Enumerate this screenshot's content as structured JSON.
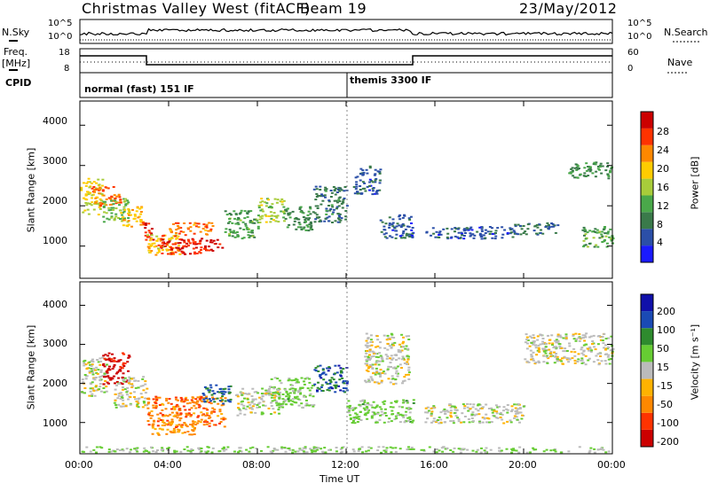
{
  "header": {
    "station": "Christmas Valley West (fitACF)",
    "beam": "Beam 19",
    "date": "23/May/2012"
  },
  "left_labels": {
    "nsky": "N.Sky",
    "freq": "Freq.",
    "freq_unit": "[MHz]",
    "cpid": "CPID"
  },
  "right_labels": {
    "nsearch": "N.Search",
    "nave": "Nave"
  },
  "cpid_labels": {
    "first": "normal (fast) 151 IF",
    "second": "themis 3300 IF"
  },
  "noise_axis": {
    "left_ticks": [
      "10^5",
      "10^0"
    ],
    "right_ticks": [
      "10^5",
      "10^0"
    ]
  },
  "freq_axis": {
    "left_ticks": [
      "18",
      "8"
    ],
    "right_ticks": [
      "60",
      "0"
    ]
  },
  "x_axis": {
    "title": "Time UT",
    "ticks": [
      "00:00",
      "04:00",
      "08:00",
      "12:00",
      "16:00",
      "20:00",
      "00:00"
    ]
  },
  "y_axis": {
    "title": "Slant Range [km]",
    "ticks": [
      "1000",
      "2000",
      "3000",
      "4000"
    ]
  },
  "colors": {
    "power_scale": [
      "#1a1aff",
      "#2b4fa8",
      "#3a7a4a",
      "#4aa84a",
      "#a8cc3a",
      "#ffcc00",
      "#ff8800",
      "#ff3300",
      "#cc0000"
    ],
    "velocity_scale": [
      "#cc0000",
      "#ff3300",
      "#ff8800",
      "#ffb200",
      "#bbbbbb",
      "#66cc33",
      "#2e8b2e",
      "#1a4ab4",
      "#1010aa"
    ],
    "ground_scatter": "#bbbbbb"
  },
  "power_colorbar": {
    "title": "Power [dB]",
    "ticks": [
      "4",
      "8",
      "12",
      "16",
      "20",
      "24",
      "28"
    ]
  },
  "velocity_colorbar": {
    "title": "Velocity [m s⁻¹]",
    "ticks": [
      "200",
      "100",
      "50",
      "15",
      "-15",
      "-50",
      "-100",
      "-200"
    ]
  },
  "chart_data": [
    {
      "type": "heatmap",
      "name": "power",
      "x_unit": "hours UT",
      "xlim": [
        0,
        24
      ],
      "ylim": [
        200,
        4600
      ],
      "zlim": [
        0,
        32
      ],
      "cells": [
        {
          "t": [
            0.0,
            1.0
          ],
          "r": [
            1800,
            2700
          ],
          "v": 18
        },
        {
          "t": [
            0.5,
            1.8
          ],
          "r": [
            2000,
            2500
          ],
          "v": 24
        },
        {
          "t": [
            1.0,
            2.2
          ],
          "r": [
            1600,
            2200
          ],
          "v": 14
        },
        {
          "t": [
            1.8,
            2.8
          ],
          "r": [
            1500,
            2000
          ],
          "v": 20
        },
        {
          "t": [
            2.8,
            3.3
          ],
          "r": [
            1100,
            1600
          ],
          "v": 28
        },
        {
          "t": [
            3.0,
            4.5
          ],
          "r": [
            800,
            1300
          ],
          "v": 20
        },
        {
          "t": [
            3.5,
            5.5
          ],
          "r": [
            800,
            1300
          ],
          "v": 28
        },
        {
          "t": [
            4.0,
            6.0
          ],
          "r": [
            1300,
            1600
          ],
          "v": 24
        },
        {
          "t": [
            5.5,
            6.4
          ],
          "r": [
            900,
            1200
          ],
          "v": 30
        },
        {
          "t": [
            6.5,
            8.0
          ],
          "r": [
            1200,
            1900
          ],
          "v": 12
        },
        {
          "t": [
            8.0,
            9.2
          ],
          "r": [
            1600,
            2200
          ],
          "v": 16
        },
        {
          "t": [
            9.2,
            10.5
          ],
          "r": [
            1400,
            2000
          ],
          "v": 10
        },
        {
          "t": [
            10.5,
            12.0
          ],
          "r": [
            1600,
            2500
          ],
          "v": 8
        },
        {
          "t": [
            12.3,
            13.5
          ],
          "r": [
            2300,
            3000
          ],
          "v": 6
        },
        {
          "t": [
            13.5,
            15.0
          ],
          "r": [
            1200,
            1800
          ],
          "v": 6
        },
        {
          "t": [
            15.5,
            19.5
          ],
          "r": [
            1200,
            1500
          ],
          "v": 6
        },
        {
          "t": [
            19.5,
            21.5
          ],
          "r": [
            1300,
            1600
          ],
          "v": 8
        },
        {
          "t": [
            22.0,
            24.0
          ],
          "r": [
            2700,
            3100
          ],
          "v": 10
        },
        {
          "t": [
            22.5,
            24.0
          ],
          "r": [
            1000,
            1500
          ],
          "v": 12
        }
      ]
    },
    {
      "type": "heatmap",
      "name": "velocity",
      "x_unit": "hours UT",
      "xlim": [
        0,
        24
      ],
      "ylim": [
        200,
        4600
      ],
      "zlim": [
        -250,
        250
      ],
      "cells": [
        {
          "t": [
            0.0,
            1.2
          ],
          "r": [
            1700,
            2700
          ],
          "v": 0
        },
        {
          "t": [
            1.0,
            2.2
          ],
          "r": [
            2000,
            2800
          ],
          "v": -220
        },
        {
          "t": [
            1.5,
            3.0
          ],
          "r": [
            1400,
            2200
          ],
          "v": 0
        },
        {
          "t": [
            3.0,
            6.5
          ],
          "r": [
            900,
            1700
          ],
          "v": -120
        },
        {
          "t": [
            3.2,
            5.2
          ],
          "r": [
            700,
            1000
          ],
          "v": -80
        },
        {
          "t": [
            5.5,
            6.8
          ],
          "r": [
            1500,
            2000
          ],
          "v": 150
        },
        {
          "t": [
            7.0,
            9.0
          ],
          "r": [
            1200,
            1900
          ],
          "v": 0
        },
        {
          "t": [
            8.5,
            10.5
          ],
          "r": [
            1400,
            2200
          ],
          "v": 40
        },
        {
          "t": [
            10.5,
            12.0
          ],
          "r": [
            1800,
            2500
          ],
          "v": 160
        },
        {
          "t": [
            12.0,
            15.0
          ],
          "r": [
            1000,
            1600
          ],
          "v": 40
        },
        {
          "t": [
            12.8,
            14.8
          ],
          "r": [
            2000,
            3300
          ],
          "v": 0
        },
        {
          "t": [
            15.5,
            20.0
          ],
          "r": [
            1000,
            1500
          ],
          "v": 0
        },
        {
          "t": [
            20.0,
            24.0
          ],
          "r": [
            2500,
            3300
          ],
          "v": 0
        },
        {
          "t": [
            0.0,
            24.0
          ],
          "r": [
            250,
            400
          ],
          "v": 30
        }
      ]
    }
  ]
}
